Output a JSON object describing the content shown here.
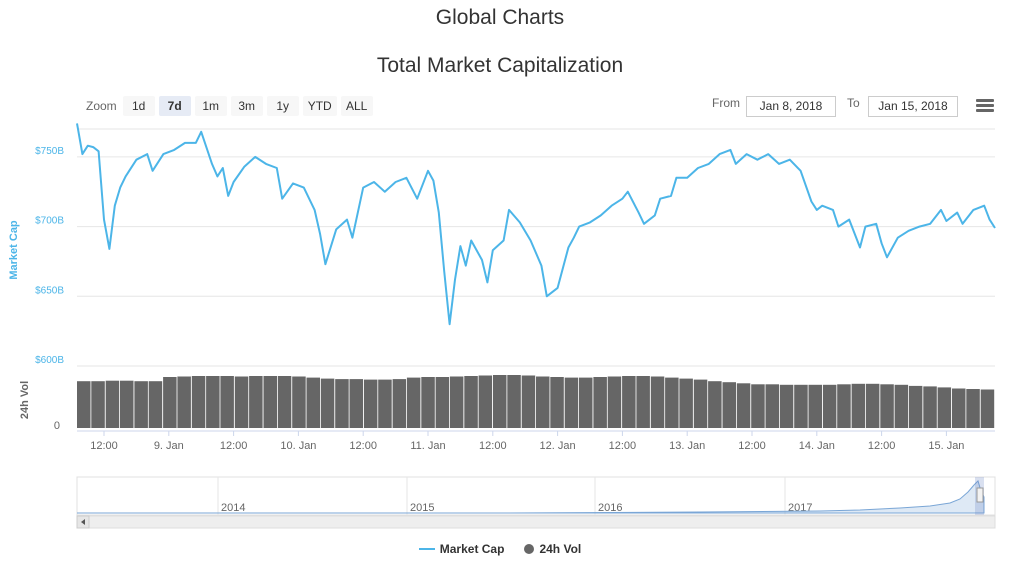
{
  "page": {
    "title": "Global Charts"
  },
  "toolbar": {
    "zoom_label": "Zoom",
    "zoom_buttons": [
      "1d",
      "7d",
      "1m",
      "3m",
      "1y",
      "YTD",
      "ALL"
    ],
    "active_zoom": "7d",
    "from_label": "From",
    "from_value": "Jan 8, 2018",
    "to_label": "To",
    "to_value": "Jan 15, 2018"
  },
  "colors": {
    "market_cap": "#4cb5e8",
    "volume": "#666666",
    "grid": "#e6e6e6",
    "navigator": "#7aa6d6"
  },
  "icons": {
    "menu": "hamburger-menu-icon",
    "scroll_left": "arrow-left-icon",
    "navigator_handle": "drag-handle-icon"
  },
  "chart_data": {
    "type": "line",
    "title": "Total Market Capitalization",
    "x_ticks": [
      "12:00",
      "9. Jan",
      "12:00",
      "10. Jan",
      "12:00",
      "11. Jan",
      "12:00",
      "12. Jan",
      "12:00",
      "13. Jan",
      "12:00",
      "14. Jan",
      "12:00",
      "15. Jan"
    ],
    "y_axis_label": "Market Cap",
    "y_ticks": [
      "$600B",
      "$650B",
      "$700B",
      "$750B"
    ],
    "y_range": [
      600,
      770
    ],
    "volume_axis_label": "24h Vol",
    "volume_ticks": [
      "0"
    ],
    "navigator_ticks": [
      "2014",
      "2015",
      "2016",
      "2017"
    ],
    "legend": [
      "Market Cap",
      "24h Vol"
    ],
    "series": [
      {
        "name": "Market Cap",
        "unit": "$B",
        "points": [
          [
            "2018-01-08T07:00",
            774
          ],
          [
            "2018-01-08T08:00",
            752
          ],
          [
            "2018-01-08T09:00",
            758
          ],
          [
            "2018-01-08T10:00",
            757
          ],
          [
            "2018-01-08T11:00",
            754
          ],
          [
            "2018-01-08T12:00",
            705
          ],
          [
            "2018-01-08T13:00",
            684
          ],
          [
            "2018-01-08T14:00",
            715
          ],
          [
            "2018-01-08T15:00",
            728
          ],
          [
            "2018-01-08T16:00",
            736
          ],
          [
            "2018-01-08T18:00",
            748
          ],
          [
            "2018-01-08T20:00",
            752
          ],
          [
            "2018-01-08T21:00",
            740
          ],
          [
            "2018-01-08T23:00",
            752
          ],
          [
            "2018-01-09T01:00",
            755
          ],
          [
            "2018-01-09T03:00",
            760
          ],
          [
            "2018-01-09T05:00",
            760
          ],
          [
            "2018-01-09T06:00",
            768
          ],
          [
            "2018-01-09T08:00",
            745
          ],
          [
            "2018-01-09T09:00",
            736
          ],
          [
            "2018-01-09T10:00",
            742
          ],
          [
            "2018-01-09T11:00",
            722
          ],
          [
            "2018-01-09T12:00",
            732
          ],
          [
            "2018-01-09T14:00",
            743
          ],
          [
            "2018-01-09T16:00",
            750
          ],
          [
            "2018-01-09T18:00",
            745
          ],
          [
            "2018-01-09T20:00",
            742
          ],
          [
            "2018-01-09T21:00",
            720
          ],
          [
            "2018-01-09T23:00",
            731
          ],
          [
            "2018-01-10T01:00",
            728
          ],
          [
            "2018-01-10T03:00",
            712
          ],
          [
            "2018-01-10T04:00",
            695
          ],
          [
            "2018-01-10T05:00",
            673
          ],
          [
            "2018-01-10T07:00",
            698
          ],
          [
            "2018-01-10T09:00",
            705
          ],
          [
            "2018-01-10T10:00",
            692
          ],
          [
            "2018-01-10T12:00",
            728
          ],
          [
            "2018-01-10T14:00",
            732
          ],
          [
            "2018-01-10T16:00",
            725
          ],
          [
            "2018-01-10T18:00",
            732
          ],
          [
            "2018-01-10T20:00",
            735
          ],
          [
            "2018-01-10T22:00",
            720
          ],
          [
            "2018-01-11T00:00",
            740
          ],
          [
            "2018-01-11T01:00",
            733
          ],
          [
            "2018-01-11T02:00",
            710
          ],
          [
            "2018-01-11T03:00",
            668
          ],
          [
            "2018-01-11T04:00",
            630
          ],
          [
            "2018-01-11T05:00",
            662
          ],
          [
            "2018-01-11T06:00",
            686
          ],
          [
            "2018-01-11T07:00",
            672
          ],
          [
            "2018-01-11T08:00",
            690
          ],
          [
            "2018-01-11T10:00",
            676
          ],
          [
            "2018-01-11T11:00",
            660
          ],
          [
            "2018-01-11T12:00",
            683
          ],
          [
            "2018-01-11T14:00",
            690
          ],
          [
            "2018-01-11T15:00",
            712
          ],
          [
            "2018-01-11T17:00",
            703
          ],
          [
            "2018-01-11T19:00",
            690
          ],
          [
            "2018-01-11T21:00",
            672
          ],
          [
            "2018-01-11T22:00",
            650
          ],
          [
            "2018-01-12T00:00",
            656
          ],
          [
            "2018-01-12T02:00",
            685
          ],
          [
            "2018-01-12T03:00",
            692
          ],
          [
            "2018-01-12T04:00",
            700
          ],
          [
            "2018-01-12T06:00",
            703
          ],
          [
            "2018-01-12T08:00",
            708
          ],
          [
            "2018-01-12T10:00",
            715
          ],
          [
            "2018-01-12T12:00",
            720
          ],
          [
            "2018-01-12T13:00",
            725
          ],
          [
            "2018-01-12T15:00",
            710
          ],
          [
            "2018-01-12T16:00",
            702
          ],
          [
            "2018-01-12T18:00",
            708
          ],
          [
            "2018-01-12T19:00",
            720
          ],
          [
            "2018-01-12T21:00",
            722
          ],
          [
            "2018-01-12T22:00",
            735
          ],
          [
            "2018-01-13T00:00",
            735
          ],
          [
            "2018-01-13T02:00",
            742
          ],
          [
            "2018-01-13T04:00",
            745
          ],
          [
            "2018-01-13T06:00",
            752
          ],
          [
            "2018-01-13T08:00",
            755
          ],
          [
            "2018-01-13T09:00",
            745
          ],
          [
            "2018-01-13T11:00",
            752
          ],
          [
            "2018-01-13T13:00",
            748
          ],
          [
            "2018-01-13T15:00",
            752
          ],
          [
            "2018-01-13T17:00",
            745
          ],
          [
            "2018-01-13T19:00",
            748
          ],
          [
            "2018-01-13T21:00",
            740
          ],
          [
            "2018-01-13T23:00",
            718
          ],
          [
            "2018-01-14T00:00",
            712
          ],
          [
            "2018-01-14T01:00",
            715
          ],
          [
            "2018-01-14T03:00",
            712
          ],
          [
            "2018-01-14T04:00",
            700
          ],
          [
            "2018-01-14T06:00",
            705
          ],
          [
            "2018-01-14T08:00",
            685
          ],
          [
            "2018-01-14T09:00",
            700
          ],
          [
            "2018-01-14T11:00",
            702
          ],
          [
            "2018-01-14T12:00",
            688
          ],
          [
            "2018-01-14T13:00",
            678
          ],
          [
            "2018-01-14T15:00",
            692
          ],
          [
            "2018-01-14T17:00",
            697
          ],
          [
            "2018-01-14T19:00",
            700
          ],
          [
            "2018-01-14T21:00",
            702
          ],
          [
            "2018-01-14T23:00",
            712
          ],
          [
            "2018-01-15T00:00",
            704
          ],
          [
            "2018-01-15T02:00",
            710
          ],
          [
            "2018-01-15T03:00",
            702
          ],
          [
            "2018-01-15T05:00",
            712
          ],
          [
            "2018-01-15T07:00",
            715
          ],
          [
            "2018-01-15T08:00",
            705
          ],
          [
            "2018-01-15T09:00",
            699
          ]
        ]
      },
      {
        "name": "24h Vol",
        "values": [
          0.9,
          0.9,
          0.91,
          0.91,
          0.9,
          0.9,
          0.98,
          0.99,
          1.0,
          1.0,
          1.0,
          0.99,
          1.0,
          1.0,
          1.0,
          0.99,
          0.97,
          0.95,
          0.94,
          0.94,
          0.93,
          0.93,
          0.94,
          0.97,
          0.98,
          0.98,
          0.99,
          1.0,
          1.01,
          1.02,
          1.02,
          1.01,
          0.99,
          0.98,
          0.97,
          0.97,
          0.98,
          0.99,
          1.0,
          1.0,
          0.99,
          0.97,
          0.95,
          0.93,
          0.9,
          0.88,
          0.86,
          0.84,
          0.84,
          0.83,
          0.83,
          0.83,
          0.83,
          0.84,
          0.85,
          0.85,
          0.84,
          0.83,
          0.81,
          0.8,
          0.78,
          0.76,
          0.75,
          0.74
        ]
      }
    ]
  }
}
